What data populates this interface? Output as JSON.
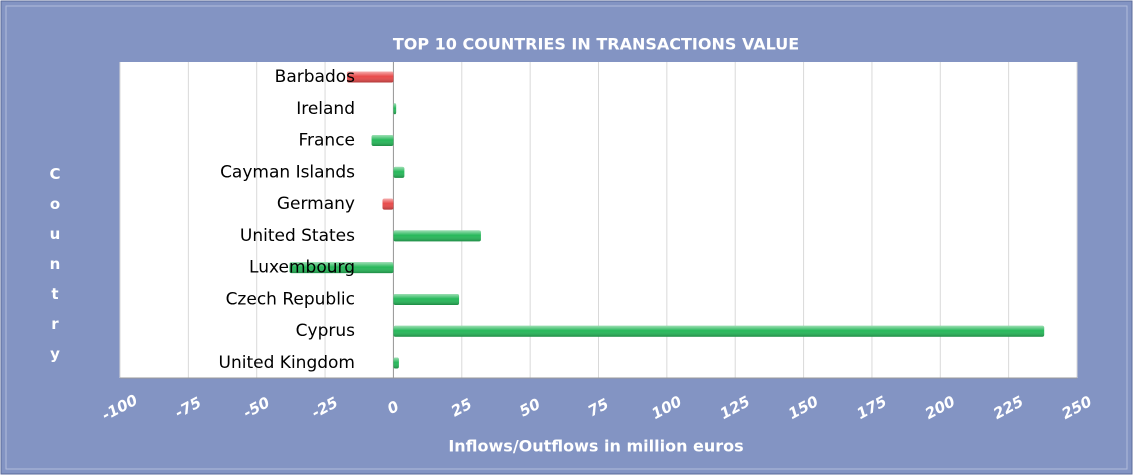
{
  "chart_data": {
    "type": "hbar",
    "title": "TOP 10 COUNTRIES IN TRANSACTIONS VALUE",
    "ylabel": "Country",
    "xlabel": "Inflows/Outflows in million euros",
    "categories": [
      "Barbados",
      "Ireland",
      "France",
      "Cayman Islands",
      "Germany",
      "United States",
      "Luxembourg",
      "Czech Republic",
      "Cyprus",
      "United Kingdom"
    ],
    "values": [
      -17,
      1,
      -8,
      4,
      -4,
      32,
      -38,
      24,
      238,
      2
    ],
    "colors": [
      "#e84a4a",
      "#27b85a",
      "#27b85a",
      "#27b85a",
      "#e84a4a",
      "#27b85a",
      "#27b85a",
      "#27b85a",
      "#27b85a",
      "#27b85a"
    ],
    "xlim": [
      -100,
      250
    ],
    "xticks": [
      -100,
      -75,
      -50,
      -25,
      0,
      25,
      50,
      75,
      100,
      125,
      150,
      175,
      200,
      225,
      250
    ],
    "grid": true
  }
}
